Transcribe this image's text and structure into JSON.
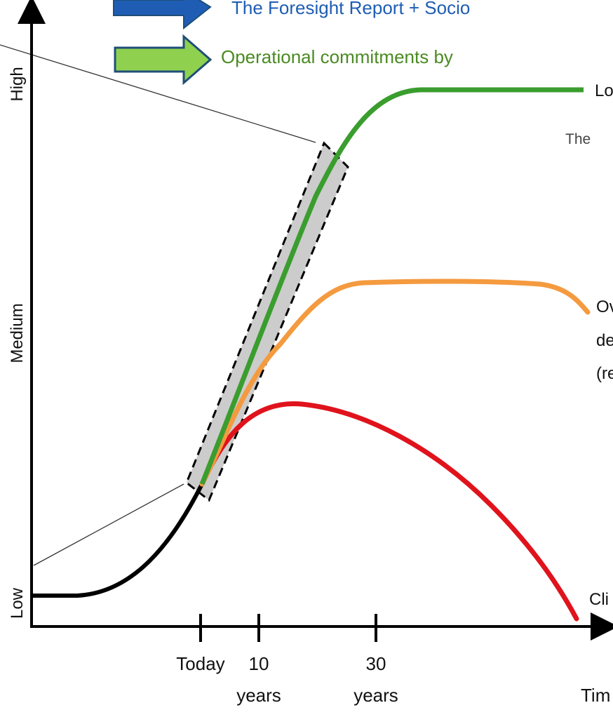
{
  "legend": {
    "item1": {
      "text": "The Foresight Report + Socio",
      "color": "#1f5db4",
      "arrow_color": "#1f5db4",
      "border": "#1f4e79"
    },
    "item2": {
      "text": "Operational commitments by",
      "color": "#4a8a22",
      "arrow_color": "#8fd14f",
      "border": "#1f4e79"
    }
  },
  "y_axis": {
    "high": "High",
    "medium": "Medium",
    "low": "Low"
  },
  "x_axis": {
    "ticks": [
      {
        "line1": "Today",
        "line2": ""
      },
      {
        "line1": "10",
        "line2": "years"
      },
      {
        "line1": "30",
        "line2": "years"
      }
    ],
    "label": "Tim"
  },
  "annotations": {
    "green_end": "Lo",
    "subtitle": "The",
    "orange_1": "Ov",
    "orange_2": "de",
    "orange_3": "(re",
    "red_end": "Cli"
  },
  "colors": {
    "green": "#3a9d2e",
    "orange": "#f49a3f",
    "red": "#e0131c",
    "black": "#000000",
    "highlight_box": "#cccccc"
  }
}
